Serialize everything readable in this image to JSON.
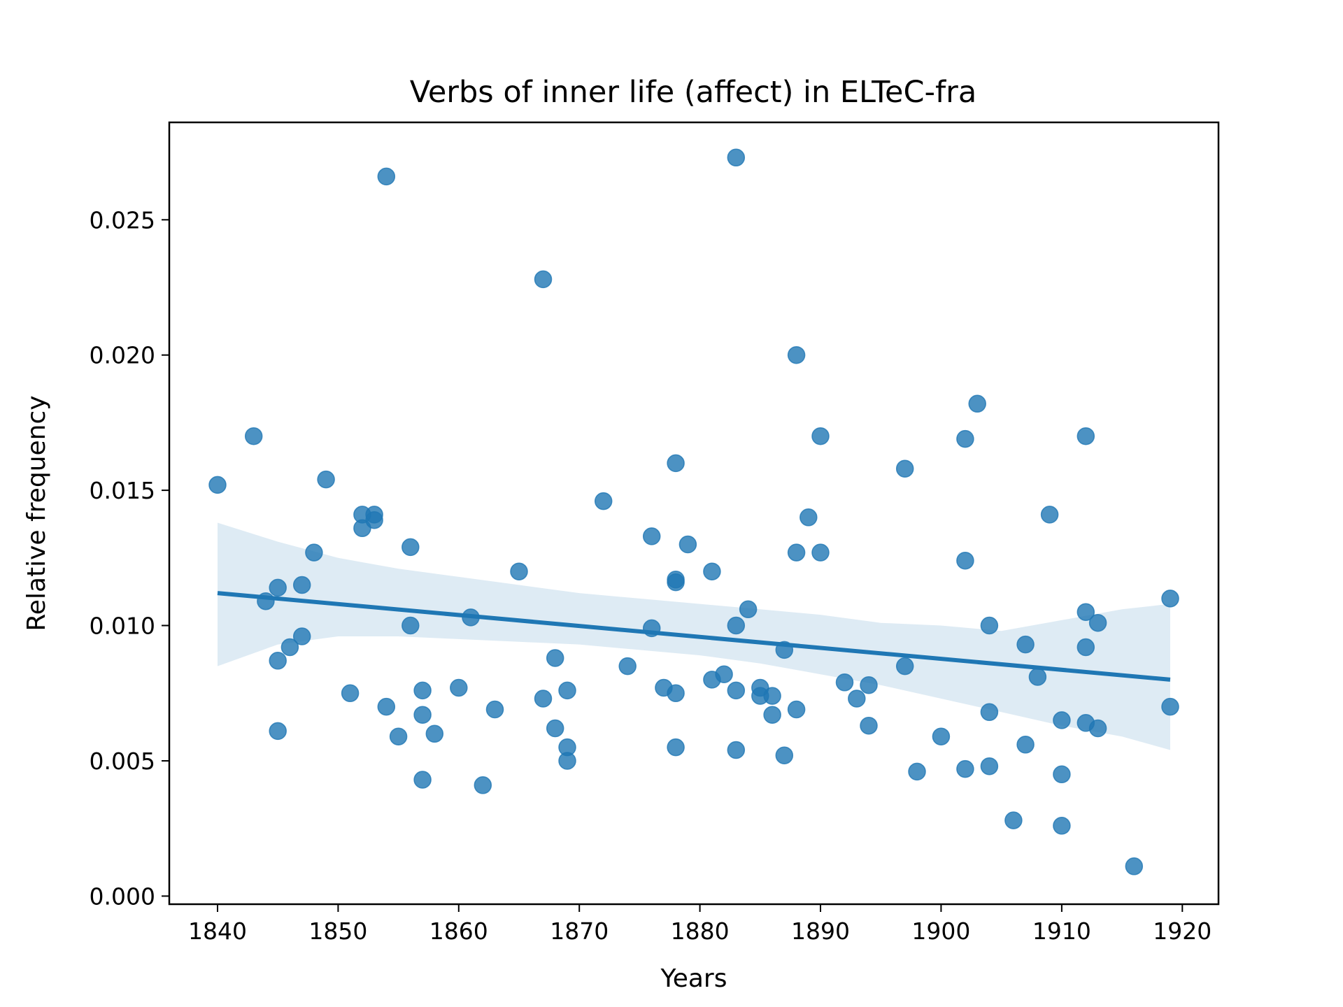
{
  "chart_data": {
    "type": "scatter",
    "title": "Verbs of inner life (affect) in ELTeC-fra",
    "xlabel": "Years",
    "ylabel": "Relative frequency",
    "xlim": [
      1836,
      1923
    ],
    "ylim": [
      -0.0003,
      0.0286
    ],
    "xticks": [
      1840,
      1850,
      1860,
      1870,
      1880,
      1890,
      1900,
      1910,
      1920
    ],
    "yticks": [
      0.0,
      0.005,
      0.01,
      0.015,
      0.02,
      0.025
    ],
    "xtick_labels": [
      "1840",
      "1850",
      "1860",
      "1870",
      "1880",
      "1890",
      "1900",
      "1910",
      "1920"
    ],
    "ytick_labels": [
      "0.000",
      "0.005",
      "0.010",
      "0.015",
      "0.020",
      "0.025"
    ],
    "grid": false,
    "colors": {
      "points": "#1f77b4",
      "line": "#1f77b4",
      "band": "#1f77b4"
    },
    "points": [
      [
        1840,
        0.0152
      ],
      [
        1843,
        0.017
      ],
      [
        1844,
        0.0109
      ],
      [
        1845,
        0.0114
      ],
      [
        1845,
        0.0087
      ],
      [
        1845,
        0.0061
      ],
      [
        1846,
        0.0092
      ],
      [
        1847,
        0.0115
      ],
      [
        1847,
        0.0096
      ],
      [
        1848,
        0.0127
      ],
      [
        1849,
        0.0154
      ],
      [
        1851,
        0.0075
      ],
      [
        1852,
        0.0141
      ],
      [
        1852,
        0.0136
      ],
      [
        1853,
        0.0141
      ],
      [
        1853,
        0.0139
      ],
      [
        1854,
        0.0266
      ],
      [
        1854,
        0.007
      ],
      [
        1855,
        0.0059
      ],
      [
        1856,
        0.0129
      ],
      [
        1856,
        0.01
      ],
      [
        1857,
        0.0076
      ],
      [
        1857,
        0.0067
      ],
      [
        1857,
        0.0043
      ],
      [
        1858,
        0.006
      ],
      [
        1860,
        0.0077
      ],
      [
        1861,
        0.0103
      ],
      [
        1862,
        0.0041
      ],
      [
        1863,
        0.0069
      ],
      [
        1865,
        0.012
      ],
      [
        1867,
        0.0228
      ],
      [
        1867,
        0.0073
      ],
      [
        1868,
        0.0088
      ],
      [
        1868,
        0.0062
      ],
      [
        1869,
        0.0076
      ],
      [
        1869,
        0.0055
      ],
      [
        1869,
        0.005
      ],
      [
        1872,
        0.0146
      ],
      [
        1874,
        0.0085
      ],
      [
        1876,
        0.0133
      ],
      [
        1876,
        0.0099
      ],
      [
        1877,
        0.0077
      ],
      [
        1878,
        0.016
      ],
      [
        1878,
        0.0117
      ],
      [
        1878,
        0.0116
      ],
      [
        1878,
        0.0075
      ],
      [
        1878,
        0.0055
      ],
      [
        1879,
        0.013
      ],
      [
        1881,
        0.012
      ],
      [
        1881,
        0.008
      ],
      [
        1882,
        0.0082
      ],
      [
        1883,
        0.0273
      ],
      [
        1883,
        0.01
      ],
      [
        1883,
        0.0076
      ],
      [
        1883,
        0.0054
      ],
      [
        1884,
        0.0106
      ],
      [
        1885,
        0.0077
      ],
      [
        1885,
        0.0074
      ],
      [
        1886,
        0.0074
      ],
      [
        1886,
        0.0067
      ],
      [
        1887,
        0.0091
      ],
      [
        1887,
        0.0052
      ],
      [
        1888,
        0.02
      ],
      [
        1888,
        0.0127
      ],
      [
        1888,
        0.0069
      ],
      [
        1889,
        0.014
      ],
      [
        1890,
        0.017
      ],
      [
        1890,
        0.0127
      ],
      [
        1892,
        0.0079
      ],
      [
        1893,
        0.0073
      ],
      [
        1894,
        0.0078
      ],
      [
        1894,
        0.0063
      ],
      [
        1897,
        0.0158
      ],
      [
        1897,
        0.0085
      ],
      [
        1898,
        0.0046
      ],
      [
        1900,
        0.0059
      ],
      [
        1902,
        0.0169
      ],
      [
        1902,
        0.0124
      ],
      [
        1902,
        0.0047
      ],
      [
        1903,
        0.0182
      ],
      [
        1904,
        0.01
      ],
      [
        1904,
        0.0068
      ],
      [
        1904,
        0.0048
      ],
      [
        1906,
        0.0028
      ],
      [
        1907,
        0.0093
      ],
      [
        1907,
        0.0056
      ],
      [
        1908,
        0.0081
      ],
      [
        1909,
        0.0141
      ],
      [
        1910,
        0.0065
      ],
      [
        1910,
        0.0045
      ],
      [
        1910,
        0.0026
      ],
      [
        1912,
        0.017
      ],
      [
        1912,
        0.0105
      ],
      [
        1912,
        0.0092
      ],
      [
        1912,
        0.0064
      ],
      [
        1913,
        0.0101
      ],
      [
        1913,
        0.0062
      ],
      [
        1916,
        0.0011
      ],
      [
        1919,
        0.011
      ],
      [
        1919,
        0.007
      ]
    ],
    "regression_line": {
      "x": [
        1840,
        1919
      ],
      "y": [
        0.0112,
        0.008
      ]
    },
    "confidence_band": {
      "x": [
        1840,
        1845,
        1850,
        1855,
        1860,
        1865,
        1870,
        1875,
        1880,
        1885,
        1890,
        1895,
        1900,
        1905,
        1910,
        1915,
        1919
      ],
      "upper": [
        0.0138,
        0.0131,
        0.0125,
        0.0121,
        0.0118,
        0.0115,
        0.0112,
        0.011,
        0.0108,
        0.0106,
        0.0104,
        0.0101,
        0.01,
        0.0098,
        0.0102,
        0.0106,
        0.0108
      ],
      "lower": [
        0.0085,
        0.0093,
        0.0096,
        0.0096,
        0.0095,
        0.0094,
        0.0093,
        0.0091,
        0.0089,
        0.0086,
        0.0082,
        0.0078,
        0.0073,
        0.0068,
        0.0063,
        0.0059,
        0.0054
      ]
    }
  }
}
